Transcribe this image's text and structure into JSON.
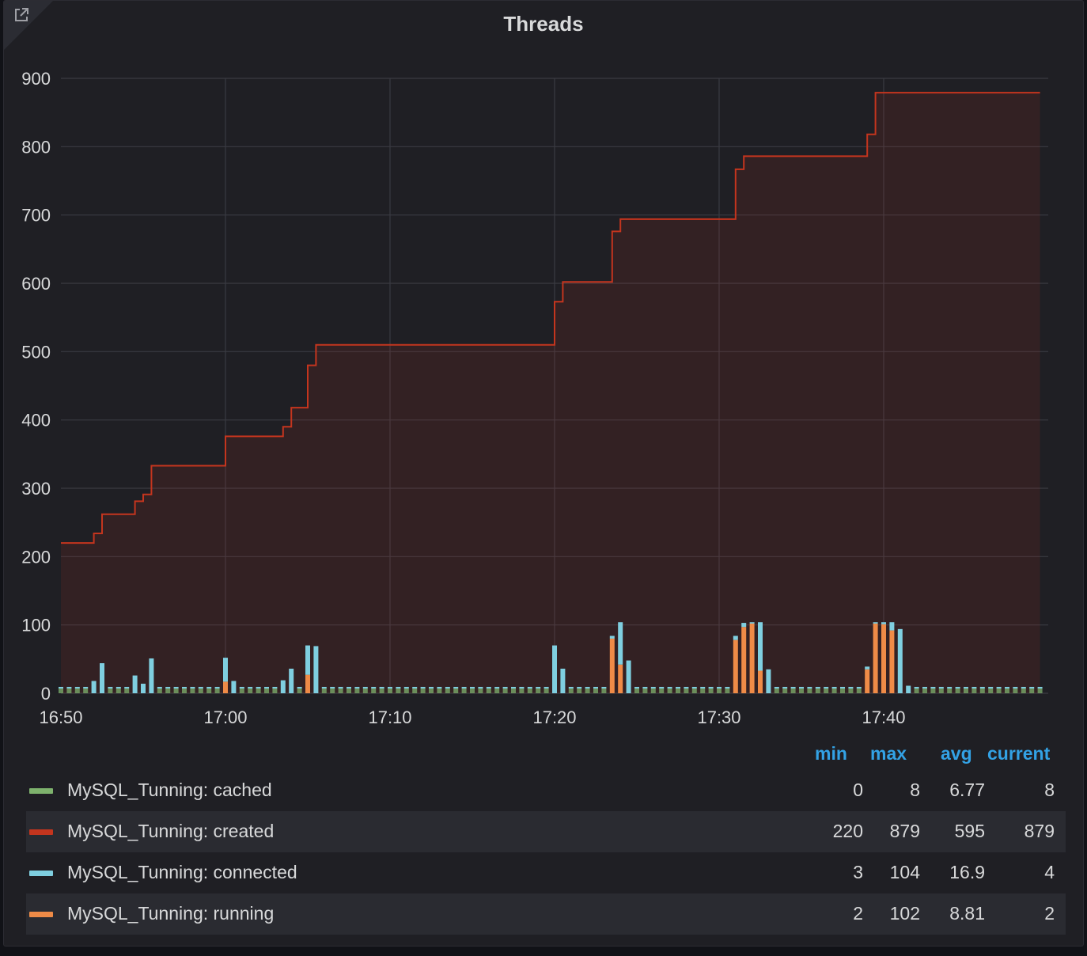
{
  "panel": {
    "title": "Threads",
    "link_icon": "external-link-icon"
  },
  "legend": {
    "columns": [
      "min",
      "max",
      "avg",
      "current"
    ],
    "rows": [
      {
        "name": "MySQL_Tunning: cached",
        "color": "#7eb26d",
        "min": "0",
        "max": "8",
        "avg": "6.77",
        "current": "8"
      },
      {
        "name": "MySQL_Tunning: created",
        "color": "#c4351e",
        "min": "220",
        "max": "879",
        "avg": "595",
        "current": "879"
      },
      {
        "name": "MySQL_Tunning: connected",
        "color": "#7fcfe0",
        "min": "3",
        "max": "104",
        "avg": "16.9",
        "current": "4"
      },
      {
        "name": "MySQL_Tunning: running",
        "color": "#ef8b47",
        "min": "2",
        "max": "102",
        "avg": "8.81",
        "current": "2"
      }
    ]
  },
  "chart_data": {
    "type": "line",
    "title": "Threads",
    "xlabel": "",
    "ylabel": "",
    "ylim": [
      0,
      900
    ],
    "xlim": [
      "16:50",
      "17:50"
    ],
    "y_ticks": [
      "0",
      "100",
      "200",
      "300",
      "400",
      "500",
      "600",
      "700",
      "800",
      "900"
    ],
    "x_ticks": [
      "16:50",
      "17:00",
      "17:10",
      "17:20",
      "17:30",
      "17:40"
    ],
    "grid": true,
    "series": [
      {
        "name": "MySQL_Tunning: created",
        "color": "#c4351e",
        "style": "step-line-filled",
        "points": [
          [
            "16:50",
            220
          ],
          [
            "16:52",
            234
          ],
          [
            "16:52.5",
            262
          ],
          [
            "16:54.5",
            281
          ],
          [
            "16:55",
            291
          ],
          [
            "16:55.5",
            333
          ],
          [
            "17:00",
            376
          ],
          [
            "17:03.5",
            390
          ],
          [
            "17:04",
            418
          ],
          [
            "17:05",
            480
          ],
          [
            "17:05.5",
            510
          ],
          [
            "17:20",
            573
          ],
          [
            "17:20.5",
            602
          ],
          [
            "17:23.5",
            676
          ],
          [
            "17:24",
            694
          ],
          [
            "17:31",
            767
          ],
          [
            "17:31.5",
            786
          ],
          [
            "17:39",
            818
          ],
          [
            "17:39.5",
            879
          ],
          [
            "17:49.5",
            879
          ]
        ]
      },
      {
        "name": "MySQL_Tunning: cached",
        "color": "#7eb26d",
        "style": "bars",
        "value": 7
      },
      {
        "name": "MySQL_Tunning: connected",
        "color": "#7fcfe0",
        "style": "bars",
        "points": [
          [
            "16:52",
            18
          ],
          [
            "16:52.5",
            44
          ],
          [
            "16:54.5",
            26
          ],
          [
            "16:55",
            14
          ],
          [
            "16:55.5",
            51
          ],
          [
            "17:00",
            52
          ],
          [
            "17:00.5",
            18
          ],
          [
            "17:03.5",
            19
          ],
          [
            "17:04",
            36
          ],
          [
            "17:05",
            70
          ],
          [
            "17:05.5",
            69
          ],
          [
            "17:20",
            70
          ],
          [
            "17:20.5",
            36
          ],
          [
            "17:23.5",
            84
          ],
          [
            "17:24",
            104
          ],
          [
            "17:24.5",
            48
          ],
          [
            "17:31",
            84
          ],
          [
            "17:31.5",
            103
          ],
          [
            "17:32",
            104
          ],
          [
            "17:32.5",
            104
          ],
          [
            "17:33",
            35
          ],
          [
            "17:39",
            39
          ],
          [
            "17:39.5",
            104
          ],
          [
            "17:40",
            104
          ],
          [
            "17:40.5",
            104
          ],
          [
            "17:41",
            94
          ],
          [
            "17:41.5",
            11
          ]
        ]
      },
      {
        "name": "MySQL_Tunning: running",
        "color": "#ef8b47",
        "style": "bars",
        "points": [
          [
            "17:00",
            17
          ],
          [
            "17:05",
            27
          ],
          [
            "17:23.5",
            80
          ],
          [
            "17:24",
            42
          ],
          [
            "17:31",
            78
          ],
          [
            "17:31.5",
            97
          ],
          [
            "17:32",
            102
          ],
          [
            "17:32.5",
            33
          ],
          [
            "17:39",
            35
          ],
          [
            "17:39.5",
            102
          ],
          [
            "17:40",
            101
          ],
          [
            "17:40.5",
            92
          ]
        ]
      }
    ]
  }
}
